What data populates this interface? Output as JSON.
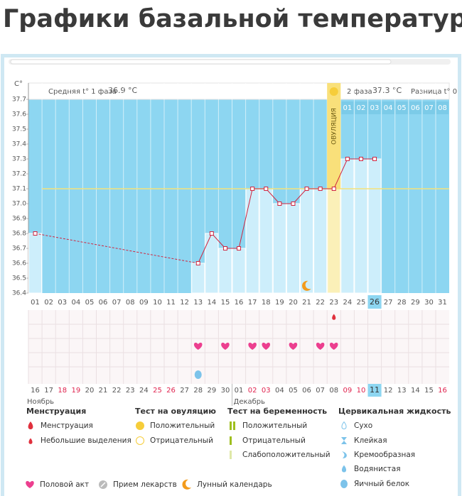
{
  "page_title": "Графики базальной температуры",
  "chart_data": {
    "type": "line",
    "y_axis_label": "C°",
    "header": {
      "phase1_label": "Средняя t° 1 фаза",
      "phase1_value": "36.9 °C",
      "phase2_label": "2 фаза",
      "phase2_value": "37.3 °C",
      "diff_label": "Разница t° 0"
    },
    "ovulation_label": "ОВУЛЯЦИЯ",
    "ovulation_day": "23",
    "today_day": "26",
    "categories": [
      "01",
      "02",
      "03",
      "04",
      "05",
      "06",
      "07",
      "08",
      "09",
      "10",
      "11",
      "12",
      "13",
      "14",
      "15",
      "16",
      "17",
      "18",
      "19",
      "20",
      "21",
      "22",
      "23",
      "24",
      "25",
      "26",
      "27",
      "28",
      "29",
      "30",
      "31"
    ],
    "values": [
      36.8,
      null,
      null,
      null,
      null,
      null,
      null,
      null,
      null,
      null,
      null,
      null,
      36.6,
      36.8,
      36.7,
      36.7,
      37.1,
      37.1,
      37.0,
      37.0,
      37.1,
      37.1,
      37.1,
      37.3,
      37.3,
      37.3,
      null,
      null,
      null,
      null,
      null
    ],
    "post_ovulation_days": [
      "01",
      "02",
      "03",
      "04",
      "05",
      "06",
      "07",
      "08"
    ],
    "cover_line": 37.1,
    "ylim": [
      36.4,
      37.7
    ],
    "yticks": [
      36.4,
      36.5,
      36.6,
      36.7,
      36.8,
      36.9,
      {
        "value": 37,
        "label": "37.0"
      },
      37.1,
      37.2,
      37.3,
      37.4,
      37.5,
      37.6,
      37.7
    ],
    "line_color": "#d0243f",
    "dates": [
      "16",
      "17",
      "18",
      "19",
      "20",
      "21",
      "22",
      "23",
      "24",
      "25",
      "26",
      "27",
      "28",
      "29",
      "30",
      "01",
      "02",
      "03",
      "04",
      "05",
      "06",
      "07",
      "08",
      "09",
      "10",
      "11",
      "12",
      "13",
      "14",
      "15",
      "16"
    ],
    "date_red": [
      2,
      3,
      9,
      10,
      16,
      17,
      23,
      24,
      30
    ],
    "today_date": "11",
    "months": [
      "Ноябрь",
      "Декабрь"
    ],
    "spotting_days": [
      "23"
    ],
    "intercourse_days": [
      "13",
      "15",
      "17",
      "18",
      "20",
      "22",
      "23"
    ],
    "egg_white_days": [
      "13"
    ],
    "lunar_days": [
      "21"
    ]
  },
  "legend": {
    "groups": [
      {
        "title": "Менструация",
        "items": [
          "Менструация",
          "Небольшие выделения"
        ]
      },
      {
        "title": "Тест на овуляцию",
        "items": [
          "Положительный",
          "Отрицательный"
        ]
      },
      {
        "title": "Тест на беременность",
        "items": [
          "Положительный",
          "Отрицательный",
          "Слабоположительный"
        ]
      },
      {
        "title": "Цервикальная жидкость",
        "items": [
          "Сухо",
          "Клейкая",
          "Кремообразная",
          "Водянистая",
          "Яичный белок"
        ]
      }
    ],
    "extras": [
      "Половой акт",
      "Прием лекарств",
      "Лунный календарь"
    ]
  }
}
